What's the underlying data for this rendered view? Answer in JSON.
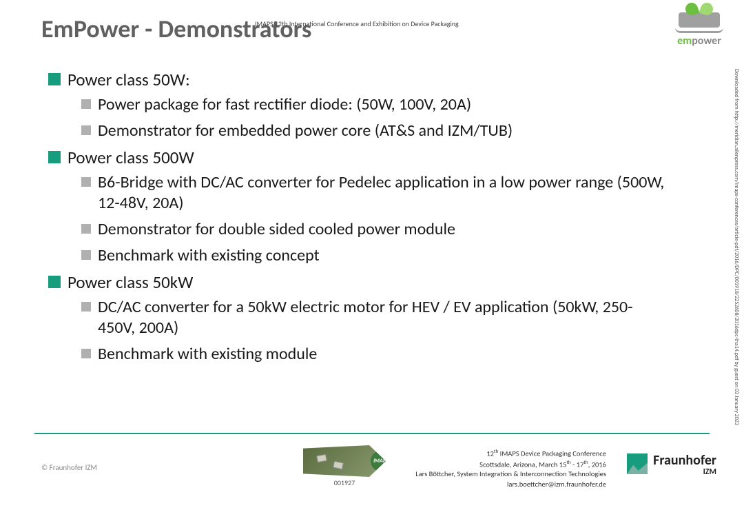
{
  "title": "EmPower - Demonstrators",
  "header_note": "IMAPS 12th International Conference and Exhibition on Device Packaging",
  "empower_logo": {
    "text_green": "em",
    "text_grey": "power"
  },
  "colors": {
    "accent": "#179c7d",
    "bullet_level1": "#179c7d",
    "bullet_level2": "#b0b0b0",
    "title_color": "#606060",
    "body_text": "#1a1a1a"
  },
  "typography": {
    "title_fontsize_pt": 27,
    "level1_fontsize_pt": 19,
    "level2_fontsize_pt": 18,
    "footer_fontsize_pt": 8
  },
  "content": {
    "sections": [
      {
        "heading": "Power class 50W:",
        "items": [
          "Power package for fast rectifier diode: (50W, 100V, 20A)",
          "Demonstrator for embedded power core (AT&S and IZM/TUB)"
        ]
      },
      {
        "heading": "Power class 500W",
        "items": [
          "B6-Bridge with DC/AC converter for Pedelec application in a low power range (500W, 12-48V, 20A)",
          "Demonstrator for double sided cooled power module",
          "Benchmark with existing concept"
        ]
      },
      {
        "heading": "Power class 50kW",
        "items": [
          "DC/AC converter for a 50kW electric motor for HEV / EV application (50kW, 250-450V, 200A)",
          "Benchmark with existing module"
        ]
      }
    ]
  },
  "side_note": "Downloaded from http://meridian.allenpress.com/imaps-conferences/article-pdf/2016/DPC/001918/2252608/2016dpc-tha14.pdf by guest on 03 January 2023",
  "footer": {
    "copyright": "© Fraunhofer IZM",
    "doc_number": "001927",
    "imaps_badge": "iMAPS",
    "conference": {
      "line1_html": "12<sup>th</sup> IMAPS Device Packaging Conference",
      "line2_html": "Scottsdale, Arizona, March 15<sup>th</sup> - 17<sup>th</sup>, 2016",
      "line3": "Lars Böttcher, System Integration & Interconnection Technologies",
      "line4": "lars.boettcher@izm.fraunhofer.de"
    },
    "fraunhofer": {
      "name": "Fraunhofer",
      "sub": "IZM"
    }
  }
}
